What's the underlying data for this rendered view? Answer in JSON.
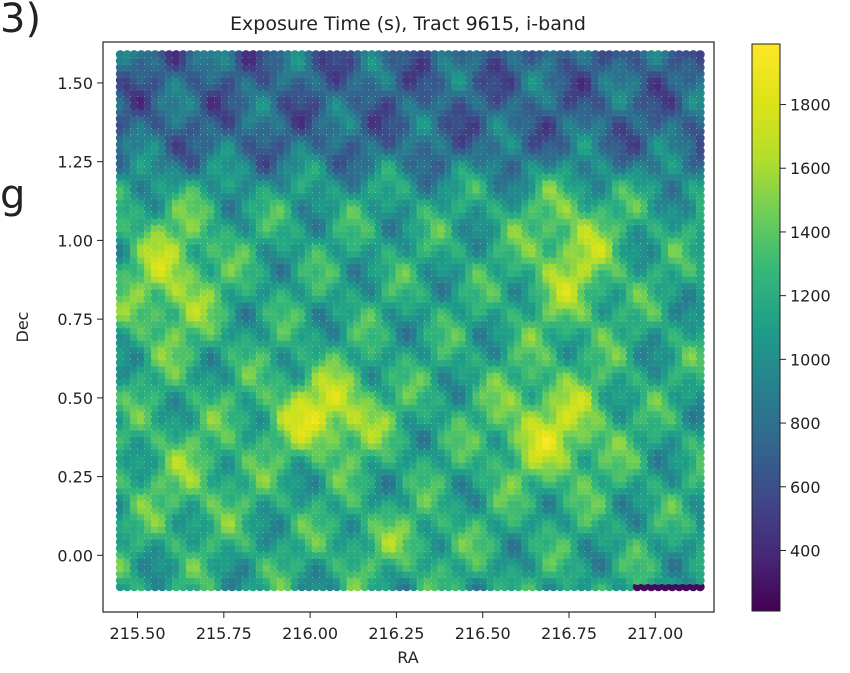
{
  "fragments": {
    "top_left": "3)",
    "mid_left": "g"
  },
  "chart_data": {
    "type": "heatmap",
    "title": "Exposure Time (s), Tract 9615, i-band",
    "xlabel": "RA",
    "ylabel": "Dec",
    "xlim": [
      215.4,
      217.17
    ],
    "ylim": [
      -0.18,
      1.63
    ],
    "x_ticks": [
      215.5,
      215.75,
      216.0,
      216.25,
      216.5,
      216.75,
      217.0
    ],
    "x_tick_labels": [
      "215.50",
      "215.75",
      "216.00",
      "216.25",
      "216.50",
      "216.75",
      "217.00"
    ],
    "y_ticks": [
      0.0,
      0.25,
      0.5,
      0.75,
      1.0,
      1.25,
      1.5
    ],
    "y_tick_labels": [
      "0.00",
      "0.25",
      "0.50",
      "0.75",
      "1.00",
      "1.25",
      "1.50"
    ],
    "data_extent": {
      "ra": [
        215.45,
        217.13
      ],
      "dec": [
        -0.1,
        1.59
      ]
    },
    "colorbar": {
      "colormap": "viridis",
      "range": [
        210,
        1990
      ],
      "ticks": [
        400,
        600,
        800,
        1000,
        1200,
        1400,
        1600,
        1800
      ],
      "tick_labels": [
        "400",
        "600",
        "800",
        "1000",
        "1200",
        "1400",
        "1600",
        "1800"
      ]
    },
    "grid": false,
    "field_description": {
      "base_exposure_s": 1150,
      "low_region": {
        "dec_above": 1.2,
        "value_s": 700
      },
      "high_regions": [
        {
          "ra_center": 216.05,
          "dec_center": 0.45,
          "value_s": 1800
        },
        {
          "ra_center": 216.7,
          "dec_center": 0.4,
          "value_s": 1700
        },
        {
          "ra_center": 215.6,
          "dec_center": 0.9,
          "value_s": 1650
        },
        {
          "ra_center": 216.75,
          "dec_center": 0.95,
          "value_s": 1650
        }
      ],
      "minimum_strip": {
        "ra": [
          216.93,
          217.13
        ],
        "dec": -0.1,
        "value_s": 250
      }
    }
  }
}
